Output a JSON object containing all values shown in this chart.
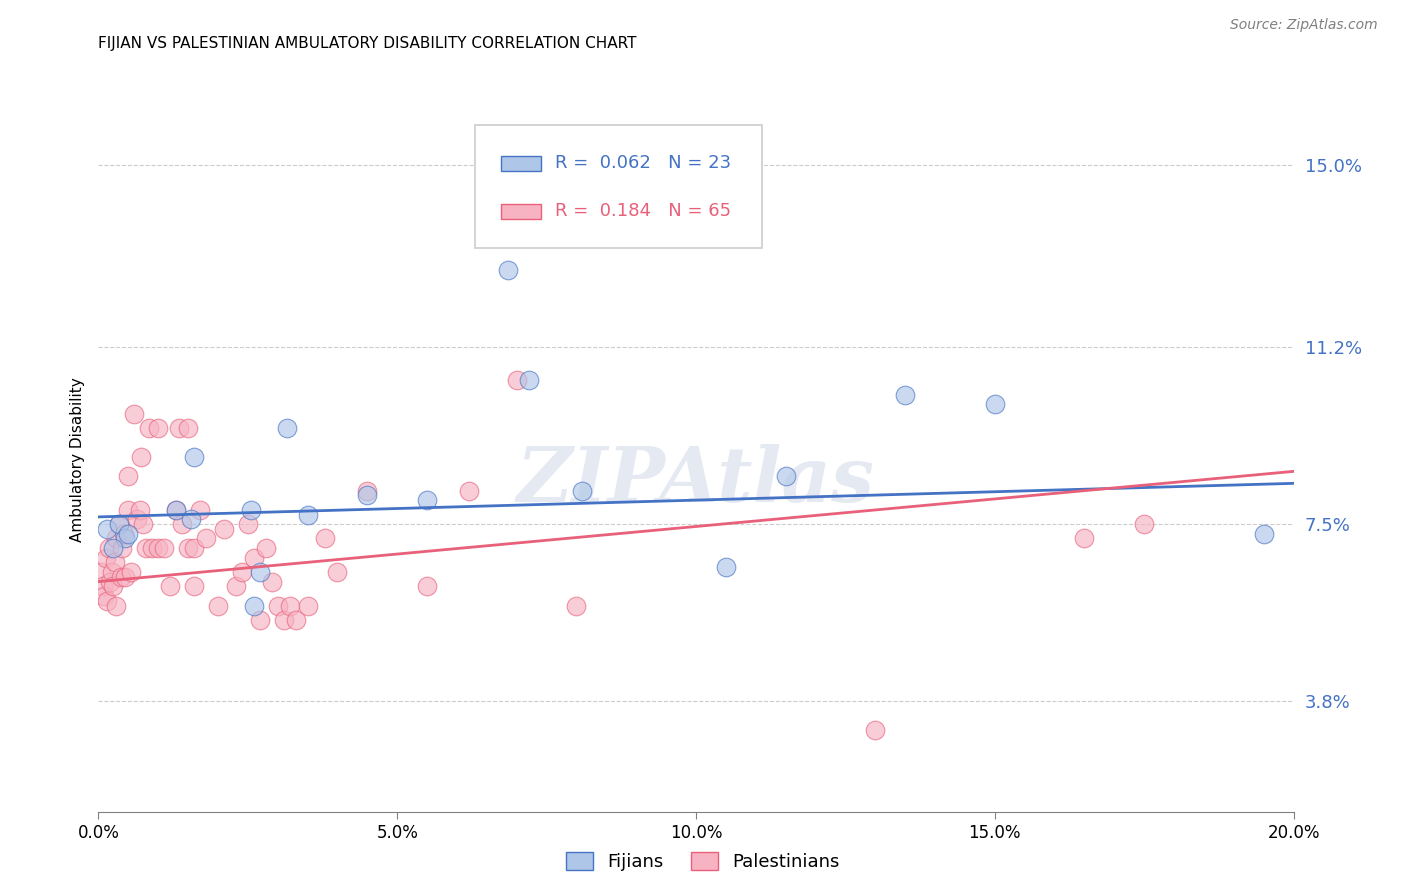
{
  "title": "FIJIAN VS PALESTINIAN AMBULATORY DISABILITY CORRELATION CHART",
  "source": "Source: ZipAtlas.com",
  "ylabel": "Ambulatory Disability",
  "xlabel_ticks": [
    "0.0%",
    "5.0%",
    "10.0%",
    "15.0%",
    "20.0%"
  ],
  "xlabel_vals": [
    0.0,
    5.0,
    10.0,
    15.0,
    20.0
  ],
  "ylabel_ticks": [
    "3.8%",
    "7.5%",
    "11.2%",
    "15.0%"
  ],
  "ylabel_vals": [
    3.8,
    7.5,
    11.2,
    15.0
  ],
  "xmin": 0.0,
  "xmax": 20.0,
  "ymin": 1.5,
  "ymax": 16.2,
  "fijian_color": "#aec6e8",
  "palestinian_color": "#f7b3c2",
  "fijian_line_color": "#4472c4",
  "palestinian_line_color": "#e8607a",
  "fijian_R": 0.062,
  "fijian_N": 23,
  "palestinian_R": 0.184,
  "palestinian_N": 65,
  "watermark": "ZIPAtlas",
  "fijian_line_x0": 0.0,
  "fijian_line_y0": 7.65,
  "fijian_line_x1": 20.0,
  "fijian_line_y1": 8.35,
  "palestinian_line_x0": 0.0,
  "palestinian_line_y0": 6.3,
  "palestinian_line_x1": 20.0,
  "palestinian_line_y1": 8.6,
  "fijian_x": [
    0.15,
    0.35,
    0.45,
    1.3,
    1.55,
    1.6,
    2.55,
    2.7,
    3.15,
    3.5,
    5.5,
    6.85,
    8.1,
    10.5,
    11.5,
    13.5,
    19.5,
    0.25,
    0.5,
    2.6,
    4.5,
    7.2,
    15.0
  ],
  "fijian_y": [
    7.4,
    7.5,
    7.2,
    7.8,
    7.6,
    8.9,
    7.8,
    6.5,
    9.5,
    7.7,
    8.0,
    12.8,
    8.2,
    6.6,
    8.5,
    10.2,
    7.3,
    7.0,
    7.3,
    5.8,
    8.1,
    10.5,
    10.0
  ],
  "palestinian_x": [
    0.05,
    0.08,
    0.1,
    0.12,
    0.15,
    0.18,
    0.2,
    0.22,
    0.25,
    0.28,
    0.3,
    0.3,
    0.35,
    0.38,
    0.4,
    0.42,
    0.45,
    0.5,
    0.5,
    0.55,
    0.6,
    0.65,
    0.7,
    0.72,
    0.75,
    0.8,
    0.85,
    0.9,
    1.0,
    1.0,
    1.1,
    1.2,
    1.3,
    1.35,
    1.4,
    1.5,
    1.5,
    1.6,
    1.6,
    1.7,
    1.8,
    2.0,
    2.1,
    2.3,
    2.4,
    2.5,
    2.6,
    2.7,
    2.8,
    2.9,
    3.0,
    3.1,
    3.2,
    3.3,
    3.5,
    3.8,
    4.0,
    4.5,
    5.5,
    6.2,
    7.0,
    8.0,
    13.0,
    16.5,
    17.5
  ],
  "palestinian_y": [
    6.5,
    6.2,
    6.0,
    6.8,
    5.9,
    7.0,
    6.3,
    6.5,
    6.2,
    6.7,
    7.2,
    5.8,
    7.5,
    6.4,
    7.0,
    7.3,
    6.4,
    8.5,
    7.8,
    6.5,
    9.8,
    7.6,
    7.8,
    8.9,
    7.5,
    7.0,
    9.5,
    7.0,
    7.0,
    9.5,
    7.0,
    6.2,
    7.8,
    9.5,
    7.5,
    7.0,
    9.5,
    7.0,
    6.2,
    7.8,
    7.2,
    5.8,
    7.4,
    6.2,
    6.5,
    7.5,
    6.8,
    5.5,
    7.0,
    6.3,
    5.8,
    5.5,
    5.8,
    5.5,
    5.8,
    7.2,
    6.5,
    8.2,
    6.2,
    8.2,
    10.5,
    5.8,
    3.2,
    7.2,
    7.5
  ]
}
